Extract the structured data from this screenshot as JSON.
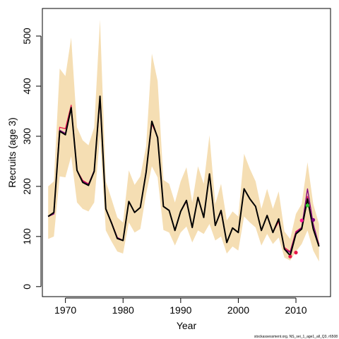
{
  "chart_data": {
    "type": "line",
    "xlabel": "Year",
    "ylabel": "Recruits (age 3)",
    "xlim": [
      1966,
      2016
    ],
    "ylim": [
      -20,
      555
    ],
    "x_ticks": [
      1970,
      1980,
      1990,
      2000,
      2010
    ],
    "y_ticks": [
      0,
      100,
      200,
      300,
      400,
      500
    ],
    "grid": false,
    "legend": "none",
    "years": [
      1967,
      1968,
      1969,
      1970,
      1971,
      1972,
      1973,
      1974,
      1975,
      1976,
      1977,
      1978,
      1979,
      1980,
      1981,
      1982,
      1983,
      1984,
      1985,
      1986,
      1987,
      1988,
      1989,
      1990,
      1991,
      1992,
      1993,
      1994,
      1995,
      1996,
      1997,
      1998,
      1999,
      2000,
      2001,
      2002,
      2003,
      2004,
      2005,
      2006,
      2007,
      2008,
      2009,
      2010,
      2011,
      2012,
      2013,
      2014
    ],
    "confidence_band": {
      "color": "#f5deb3",
      "lower": [
        95,
        100,
        220,
        218,
        260,
        168,
        155,
        150,
        168,
        300,
        112,
        90,
        70,
        66,
        128,
        108,
        115,
        185,
        240,
        218,
        113,
        108,
        82,
        108,
        120,
        88,
        112,
        105,
        125,
        92,
        100,
        66,
        80,
        72,
        140,
        128,
        118,
        82,
        105,
        85,
        98,
        58,
        52,
        70,
        85,
        112,
        72,
        50
      ],
      "upper": [
        200,
        210,
        435,
        420,
        497,
        318,
        292,
        282,
        318,
        533,
        210,
        175,
        138,
        128,
        232,
        203,
        220,
        280,
        465,
        410,
        213,
        205,
        168,
        210,
        238,
        168,
        240,
        205,
        302,
        165,
        205,
        132,
        150,
        140,
        265,
        235,
        210,
        155,
        195,
        155,
        190,
        110,
        95,
        145,
        165,
        248,
        165,
        125
      ]
    },
    "series": [
      {
        "color": "#e8174a",
        "values": [
          140,
          145,
          318,
          315,
          362,
          232,
          212,
          205,
          230,
          373,
          155,
          128,
          98,
          92,
          170,
          148,
          158,
          228,
          325,
          298,
          160,
          152,
          112,
          150,
          170,
          118,
          178,
          138,
          225,
          122,
          150,
          88,
          117,
          108,
          195,
          175,
          160,
          112,
          142,
          108,
          130,
          78,
          70,
          110,
          118,
          180,
          115,
          85
        ]
      },
      {
        "color": "#800080",
        "values": [
          140,
          145,
          312,
          306,
          358,
          232,
          210,
          204,
          232,
          378,
          155,
          128,
          98,
          92,
          170,
          148,
          158,
          230,
          328,
          298,
          160,
          152,
          112,
          150,
          170,
          118,
          178,
          138,
          225,
          122,
          150,
          88,
          117,
          108,
          195,
          175,
          160,
          112,
          142,
          108,
          133,
          75,
          68,
          108,
          118,
          195,
          125,
          82
        ]
      },
      {
        "color": "#000000",
        "values": [
          140,
          148,
          310,
          303,
          357,
          232,
          208,
          202,
          230,
          380,
          155,
          127,
          96,
          92,
          170,
          148,
          158,
          228,
          330,
          297,
          160,
          152,
          112,
          150,
          172,
          118,
          178,
          138,
          225,
          122,
          152,
          88,
          117,
          108,
          195,
          175,
          160,
          112,
          142,
          108,
          135,
          75,
          62,
          105,
          115,
          175,
          115,
          80
        ]
      }
    ],
    "end_points": [
      {
        "x": 2009,
        "y": 60,
        "color": "#e8174a"
      },
      {
        "x": 2010,
        "y": 68,
        "color": "#e8174a"
      },
      {
        "x": 2011,
        "y": 132,
        "color": "#ff1493"
      },
      {
        "x": 2012,
        "y": 162,
        "color": "#32cd32"
      },
      {
        "x": 2013,
        "y": 133,
        "color": "#800080"
      }
    ],
    "footer_note": "stockassessment.org, NS_sei_1_age1_all_Q3, r6508"
  }
}
